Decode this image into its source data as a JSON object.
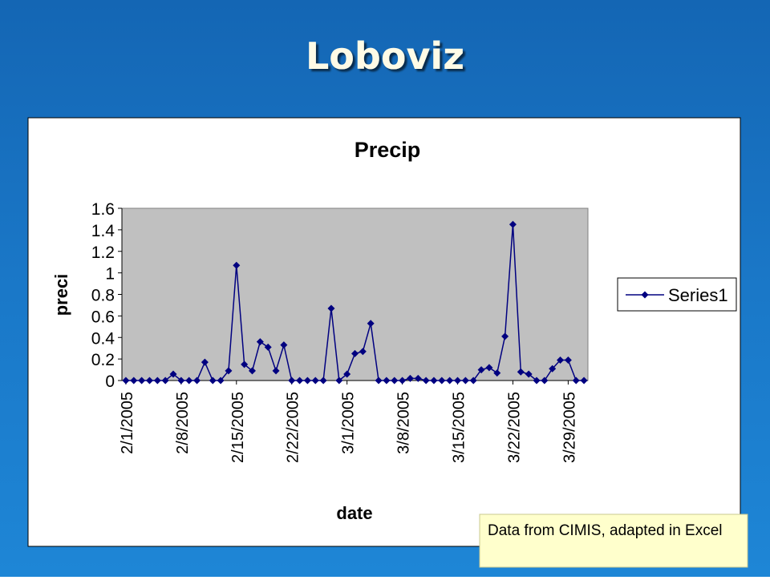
{
  "slide_title": "Loboviz",
  "note": "Data from CIMIS, adapted in Excel",
  "chart_data": {
    "type": "line",
    "title": "Precip",
    "xlabel": "date",
    "ylabel": "preci",
    "categories": [
      "2/1/2005",
      null,
      null,
      null,
      null,
      null,
      null,
      "2/8/2005",
      null,
      null,
      null,
      null,
      null,
      null,
      "2/15/2005",
      null,
      null,
      null,
      null,
      null,
      null,
      "2/22/2005",
      null,
      null,
      null,
      null,
      null,
      null,
      "3/1/2005",
      null,
      null,
      null,
      null,
      null,
      null,
      "3/8/2005",
      null,
      null,
      null,
      null,
      null,
      null,
      "3/15/2005",
      null,
      null,
      null,
      null,
      null,
      null,
      "3/22/2005",
      null,
      null,
      null,
      null,
      null,
      null,
      "3/29/2005",
      null,
      null
    ],
    "series": [
      {
        "name": "Series1",
        "color": "#000080",
        "values": [
          0,
          0,
          0,
          0,
          0,
          0,
          0.06,
          0,
          0,
          0,
          0.17,
          0,
          0,
          0.09,
          1.07,
          0.15,
          0.09,
          0.36,
          0.31,
          0.09,
          0.33,
          0,
          0,
          0,
          0,
          0,
          0.67,
          0,
          0.06,
          0.25,
          0.27,
          0.53,
          0,
          0,
          0,
          0,
          0.02,
          0.02,
          0,
          0,
          0,
          0,
          0,
          0,
          0,
          0.1,
          0.12,
          0.07,
          0.41,
          1.45,
          0.08,
          0.06,
          0,
          0,
          0.11,
          0.19,
          0.19,
          0,
          0
        ]
      }
    ],
    "ylim": [
      0,
      1.6
    ],
    "yticks": [
      0,
      0.2,
      0.4,
      0.6,
      0.8,
      1,
      1.2,
      1.4,
      1.6
    ],
    "plot_background": "#c0c0c0",
    "legend": "right"
  }
}
